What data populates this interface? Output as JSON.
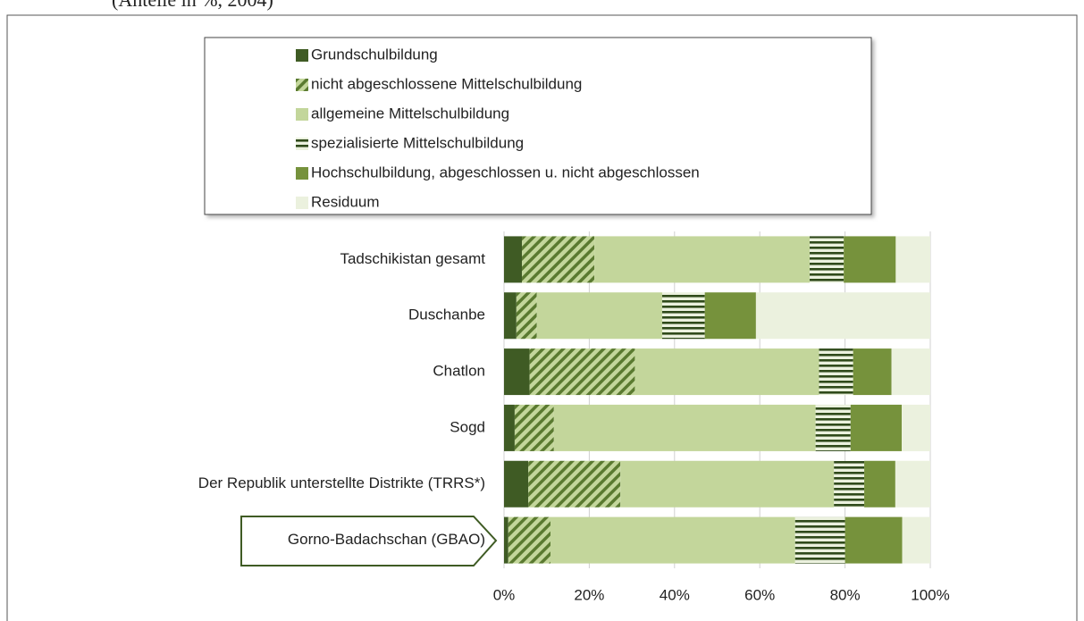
{
  "chart_data": {
    "type": "stacked_barh",
    "subtitle": "(Anteile in %, 2004)",
    "categories": [
      "Tadschikistan gesamt",
      "Duschanbe",
      "Chatlon",
      "Sogd",
      "Der Republik unterstellte Distrikte (TRRS*)",
      "Gorno-Badachschan (GBAO)"
    ],
    "series": [
      {
        "name": "Grundschulbildung",
        "color": "#3f5b24",
        "pattern": "solid",
        "values": [
          4.2,
          2.9,
          6,
          2.5,
          5.7,
          1
        ]
      },
      {
        "name": "nicht abgeschlossene Mittelschulbildung",
        "color": "#5a7a30",
        "pattern": "diagonal",
        "values": [
          17,
          4.8,
          24.7,
          9.2,
          21.6,
          9.9
        ]
      },
      {
        "name": "allgemeine Mittelschulbildung",
        "color": "#c3d69b",
        "pattern": "solid",
        "values": [
          50.5,
          29.4,
          43.2,
          61.4,
          50.1,
          57.4
        ]
      },
      {
        "name": "spezialisierte Mittelschulbildung",
        "color": "#2f4a1a",
        "pattern": "horizontal",
        "values": [
          8,
          10,
          8,
          8.2,
          7.1,
          11.7
        ]
      },
      {
        "name": "Hochschulbildung, abgeschlossen u. nicht abgeschlossen",
        "color": "#76923c",
        "pattern": "solid",
        "values": [
          12.2,
          12,
          9,
          12,
          7.3,
          13.4
        ]
      },
      {
        "name": "Residuum",
        "color": "#ebf1de",
        "pattern": "solid",
        "values": [
          8.1,
          40.9,
          9.1,
          6.7,
          8.2,
          6.6
        ]
      }
    ],
    "xlim": [
      0,
      100
    ],
    "xticks": [
      {
        "value": 0,
        "label": "0%"
      },
      {
        "value": 20,
        "label": "20%"
      },
      {
        "value": 40,
        "label": "40%"
      },
      {
        "value": 60,
        "label": "60%"
      },
      {
        "value": 80,
        "label": "80%"
      },
      {
        "value": 100,
        "label": "100%"
      }
    ],
    "grid": true
  }
}
